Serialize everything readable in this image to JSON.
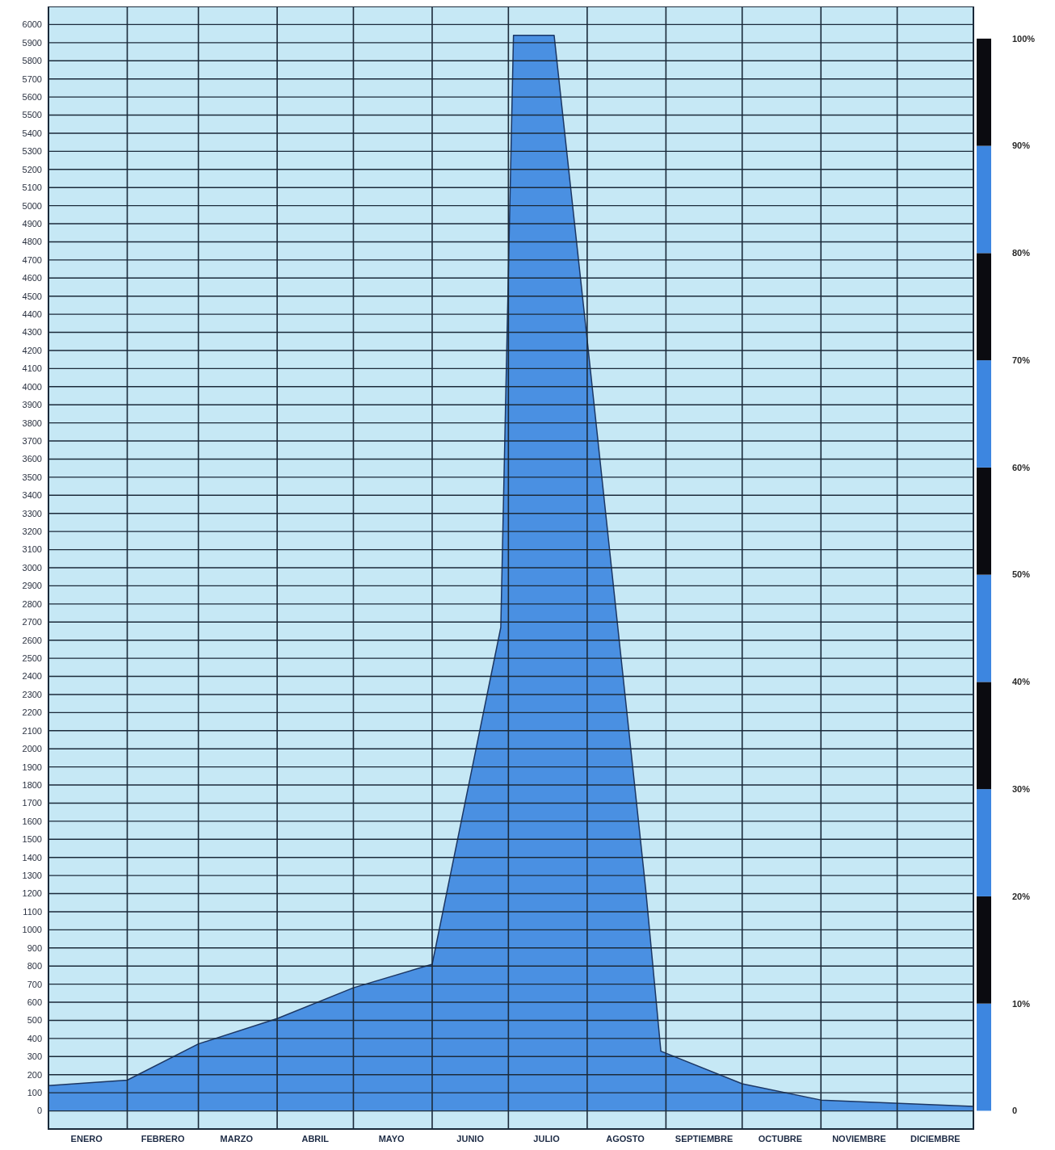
{
  "chart_data": {
    "type": "area",
    "x": [
      "--01-01",
      "--02-01",
      "--03-01",
      "--04-01",
      "--05-01",
      "--06-01",
      "--06-28",
      "--07-03",
      "--07-19",
      "--08-01",
      "--08-24",
      "--08-30",
      "--10-01",
      "--11-01",
      "--12-31"
    ],
    "values": [
      140,
      170,
      370,
      510,
      680,
      810,
      2670,
      5940,
      5940,
      4260,
      1230,
      330,
      150,
      60,
      25
    ],
    "color": "#4a90e2",
    "xlim": [
      "--01-01",
      "--12-31"
    ],
    "xticks": [
      {
        "value": "--01-01",
        "label": null
      },
      {
        "value": "--01-16",
        "label": "ENERO"
      },
      {
        "value": "--02-01",
        "label": null
      },
      {
        "value": "--02-15",
        "label": "FEBRERO"
      },
      {
        "value": "--03-01",
        "label": null
      },
      {
        "value": "--03-16",
        "label": "MARZO"
      },
      {
        "value": "--04-01",
        "label": null
      },
      {
        "value": "--04-16",
        "label": "ABRIL"
      },
      {
        "value": "--05-01",
        "label": null
      },
      {
        "value": "--05-16",
        "label": "MAYO"
      },
      {
        "value": "--06-01",
        "label": null
      },
      {
        "value": "--06-16",
        "label": "JUNIO"
      },
      {
        "value": "--07-01",
        "label": null
      },
      {
        "value": "--07-16",
        "label": "JULIO"
      },
      {
        "value": "--08-01",
        "label": null
      },
      {
        "value": "--08-16",
        "label": "AGOSTO"
      },
      {
        "value": "--09-01",
        "label": null
      },
      {
        "value": "--09-16",
        "label": "SEPTIEMBRE"
      },
      {
        "value": "--10-01",
        "label": null
      },
      {
        "value": "--10-16",
        "label": "OCTUBRE"
      },
      {
        "value": "--11-01",
        "label": null
      },
      {
        "value": "--11-16",
        "label": "NOVIEMBRE"
      },
      {
        "value": "--12-01",
        "label": null
      },
      {
        "value": "--12-16",
        "label": "DICIEMBRE"
      },
      {
        "value": "--12-31",
        "label": null
      }
    ],
    "ylim": [
      -100,
      6100
    ],
    "yticks": [
      0,
      100,
      200,
      300,
      400,
      500,
      600,
      700,
      800,
      900,
      1000,
      1100,
      1200,
      1300,
      1400,
      1500,
      1600,
      1700,
      1800,
      1900,
      2000,
      2100,
      2200,
      2300,
      2400,
      2500,
      2600,
      2700,
      2800,
      2900,
      3000,
      3100,
      3200,
      3300,
      3400,
      3500,
      3600,
      3700,
      3800,
      3900,
      4000,
      4100,
      4200,
      4300,
      4400,
      4500,
      4600,
      4700,
      4800,
      4900,
      5000,
      5100,
      5200,
      5300,
      5400,
      5500,
      5600,
      5700,
      5800,
      5900,
      6000
    ],
    "y2lim": [
      -1.7,
      103
    ],
    "y2ticks": [
      0,
      {
        "value": 10,
        "label": "10%"
      },
      {
        "value": 20,
        "label": "20%"
      },
      {
        "value": 30,
        "label": "30%"
      },
      {
        "value": 40,
        "label": "40%"
      },
      {
        "value": 50,
        "label": "50%"
      },
      {
        "value": 60,
        "label": "60%"
      },
      {
        "value": 70,
        "label": "70%"
      },
      {
        "value": 80,
        "label": "80%"
      },
      {
        "value": 90,
        "label": "90%"
      },
      {
        "value": 100,
        "label": "100%"
      }
    ],
    "grid": true,
    "legend": false
  }
}
